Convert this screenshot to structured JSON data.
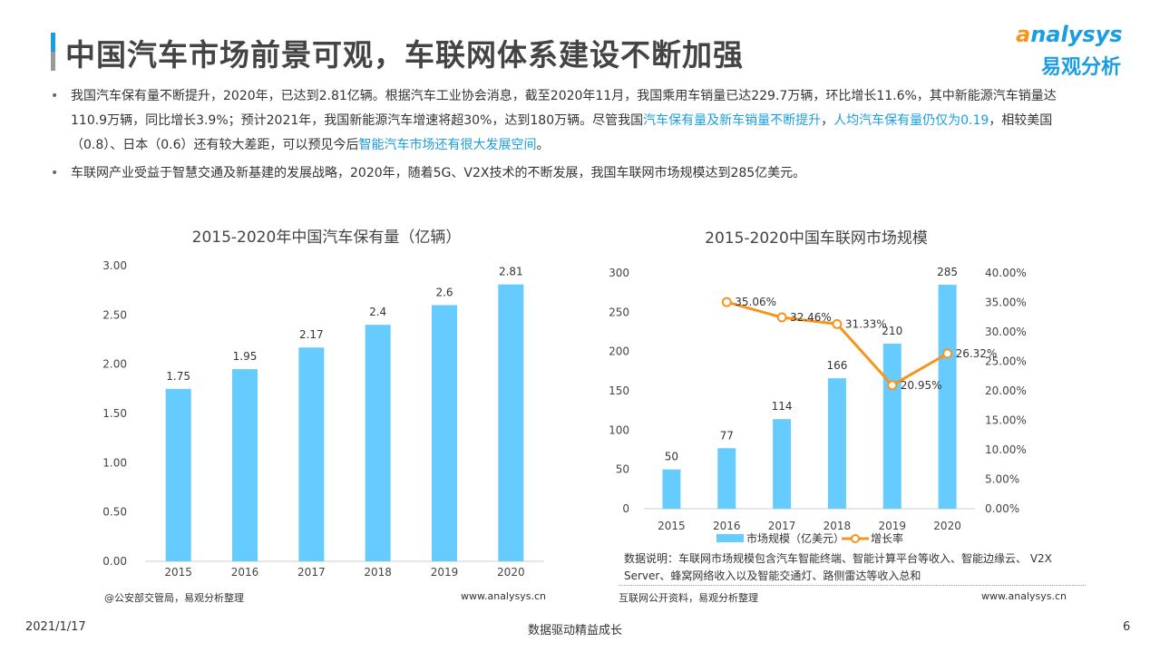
{
  "header": {
    "title": "中国汽车市场前景可观，车联网体系建设不断加强",
    "logo_en": "nalysys",
    "logo_en_first": "a",
    "logo_cn": "易观分析"
  },
  "bullets": [
    {
      "parts": [
        {
          "t": "我国汽车保有量不断提升，2020年，已达到2.81亿辆。根据汽车工业协会消息，截至2020年11月，我国乘用车销量已达229.7万辆，环比增长11.6%，其中新能源汽车销量达110.9万辆，同比增长3.9%；预计2021年，我国新能源汽车增速将超30%，达到180万辆。尽管我国",
          "h": false
        },
        {
          "t": "汽车保有量及新车销量不断提升",
          "h": true
        },
        {
          "t": "，",
          "h": false
        },
        {
          "t": "人均汽车保有量仍仅为0.19",
          "h": true
        },
        {
          "t": "，相较美国（0.8）、日本（0.6）还有较大差距，可以预见今后",
          "h": false
        },
        {
          "t": "智能汽车市场还有很大发展空间",
          "h": true
        },
        {
          "t": "。",
          "h": false
        }
      ]
    },
    {
      "parts": [
        {
          "t": "车联网产业受益于智慧交通及新基建的发展战略，2020年，随着5G、V2X技术的不断发展，我国车联网市场规模达到285亿美元。",
          "h": false
        }
      ]
    }
  ],
  "chart_data": [
    {
      "type": "bar",
      "title": "2015-2020年中国汽车保有量（亿辆）",
      "categories": [
        "2015",
        "2016",
        "2017",
        "2018",
        "2019",
        "2020"
      ],
      "values": [
        1.75,
        1.95,
        2.17,
        2.4,
        2.6,
        2.81
      ],
      "ylim": [
        0,
        3
      ],
      "yticks": [
        "0.00",
        "0.50",
        "1.00",
        "1.50",
        "2.00",
        "2.50",
        "3.00"
      ],
      "color": "#66ccff",
      "grid": false
    },
    {
      "type": "bar+line",
      "title": "2015-2020中国车联网市场规模",
      "categories": [
        "2015",
        "2016",
        "2017",
        "2018",
        "2019",
        "2020"
      ],
      "series": [
        {
          "name": "市场规模（亿美元）",
          "type": "bar",
          "values": [
            50,
            77,
            114,
            166,
            210,
            285
          ],
          "color": "#66ccff"
        },
        {
          "name": "增长率",
          "type": "line",
          "axis": "right",
          "x": [
            "2016",
            "2017",
            "2018",
            "2019",
            "2020"
          ],
          "values": [
            35.06,
            32.46,
            31.33,
            20.95,
            26.32
          ],
          "labels": [
            "35.06%",
            "32.46%",
            "31.33%",
            "20.95%",
            "26.32%"
          ],
          "color": "#f7941d"
        }
      ],
      "ylim": [
        0,
        300
      ],
      "yticks": [
        "0",
        "50",
        "100",
        "150",
        "200",
        "250",
        "300"
      ],
      "y2lim": [
        0,
        40
      ],
      "y2ticks": [
        "0.00%",
        "5.00%",
        "10.00%",
        "15.00%",
        "20.00%",
        "25.00%",
        "30.00%",
        "35.00%",
        "40.00%"
      ],
      "legend": "bottom",
      "grid": false
    }
  ],
  "left_source": {
    "source": "@公安部交管局，易观分析整理",
    "site": "www.analysys.cn"
  },
  "right_source": {
    "note": "数据说明：车联网市场规模包含汽车智能终端、智能计算平台等收入、智能边缘云、 V2X Server、蜂窝网络收入以及智能交通灯、路侧雷达等收入总和",
    "source": "互联网公开资料，易观分析整理",
    "site": "www.analysys.cn"
  },
  "footer": {
    "date": "2021/1/17",
    "slogan": "数据驱动精益成长",
    "page": "6"
  }
}
